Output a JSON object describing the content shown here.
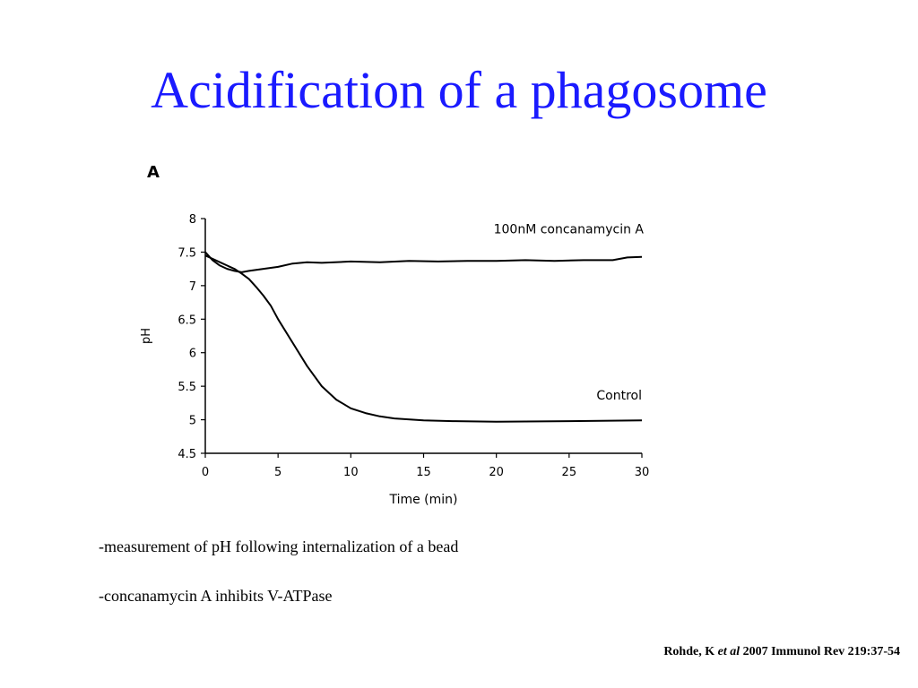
{
  "slide": {
    "title": "Acidification of a phagosome",
    "bullets": [
      "-measurement of pH following internalization of a bead",
      "-concanamycin A inhibits V-ATPase"
    ],
    "citation": {
      "authors": "Rohde, K",
      "etal": "et al",
      "rest": "2007 Immunol Rev 219:37-54"
    }
  },
  "figure": {
    "panel_label": "A",
    "colors": {
      "title": "#1a1aff",
      "line": "#000000"
    }
  },
  "chart_data": {
    "type": "line",
    "title": "",
    "xlabel": "Time (min)",
    "ylabel": "pH",
    "xlim": [
      0,
      30
    ],
    "ylim": [
      4.5,
      8
    ],
    "x_ticks": [
      "0",
      "5",
      "10",
      "15",
      "20",
      "25",
      "30"
    ],
    "y_ticks": [
      "4.5",
      "5",
      "5.5",
      "6",
      "6.5",
      "7",
      "7.5",
      "8"
    ],
    "grid": false,
    "series": [
      {
        "name": "100nM concanamycin A",
        "x": [
          0,
          0.5,
          1,
          1.5,
          2,
          2.5,
          3,
          4,
          5,
          6,
          7,
          8,
          10,
          12,
          14,
          16,
          18,
          20,
          22,
          24,
          26,
          28,
          29,
          30
        ],
        "y": [
          7.5,
          7.38,
          7.3,
          7.25,
          7.22,
          7.2,
          7.22,
          7.25,
          7.28,
          7.33,
          7.35,
          7.34,
          7.36,
          7.35,
          7.37,
          7.36,
          7.37,
          7.37,
          7.38,
          7.37,
          7.38,
          7.38,
          7.42,
          7.43
        ]
      },
      {
        "name": "Control",
        "x": [
          0,
          0.5,
          1,
          1.5,
          2,
          2.5,
          3,
          3.5,
          4,
          4.5,
          5,
          6,
          7,
          8,
          9,
          10,
          11,
          12,
          13,
          15,
          17,
          20,
          25,
          30
        ],
        "y": [
          7.45,
          7.4,
          7.35,
          7.3,
          7.25,
          7.18,
          7.1,
          6.98,
          6.85,
          6.7,
          6.5,
          6.15,
          5.8,
          5.5,
          5.3,
          5.17,
          5.1,
          5.05,
          5.02,
          4.99,
          4.98,
          4.97,
          4.98,
          4.99
        ]
      }
    ]
  }
}
